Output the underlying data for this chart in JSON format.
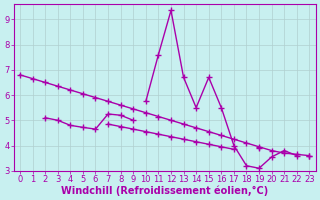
{
  "background_color": "#c8f0f0",
  "grid_color": "#b0d0d0",
  "line_color": "#aa00aa",
  "marker": "+",
  "markersize": 5,
  "linewidth": 1.0,
  "xlabel": "Windchill (Refroidissement éolien,°C)",
  "xlabel_fontsize": 7,
  "ylim": [
    3.0,
    9.6
  ],
  "xlim": [
    -0.5,
    23.5
  ],
  "yticks": [
    3,
    4,
    5,
    6,
    7,
    8,
    9
  ],
  "xticks": [
    0,
    1,
    2,
    3,
    4,
    5,
    6,
    7,
    8,
    9,
    10,
    11,
    12,
    13,
    14,
    15,
    16,
    17,
    18,
    19,
    20,
    21,
    22,
    23
  ],
  "tick_fontsize": 6,
  "line1": [
    6.8,
    6.65,
    6.5,
    6.35,
    6.2,
    6.05,
    5.9,
    5.75,
    5.6,
    5.45,
    5.3,
    5.15,
    5.0,
    4.85,
    4.7,
    4.55,
    4.4,
    4.25,
    4.1,
    3.95,
    3.8,
    3.7,
    3.65,
    3.6
  ],
  "line2": [
    null,
    null,
    5.1,
    5.0,
    4.8,
    4.72,
    4.65,
    5.25,
    5.2,
    5.0,
    null,
    null,
    null,
    null,
    null,
    null,
    null,
    null,
    null,
    null,
    null,
    null,
    null,
    null
  ],
  "line3": [
    null,
    null,
    null,
    null,
    null,
    null,
    null,
    null,
    null,
    null,
    5.75,
    7.6,
    9.35,
    6.7,
    5.5,
    6.7,
    5.5,
    4.0,
    3.2,
    3.1,
    3.55,
    3.8,
    3.6,
    null
  ],
  "line4": [
    null,
    null,
    null,
    null,
    null,
    null,
    null,
    4.85,
    4.75,
    4.65,
    4.55,
    4.45,
    4.35,
    4.25,
    4.15,
    4.05,
    3.95,
    3.85,
    null,
    3.9,
    null,
    null,
    null,
    3.6
  ]
}
